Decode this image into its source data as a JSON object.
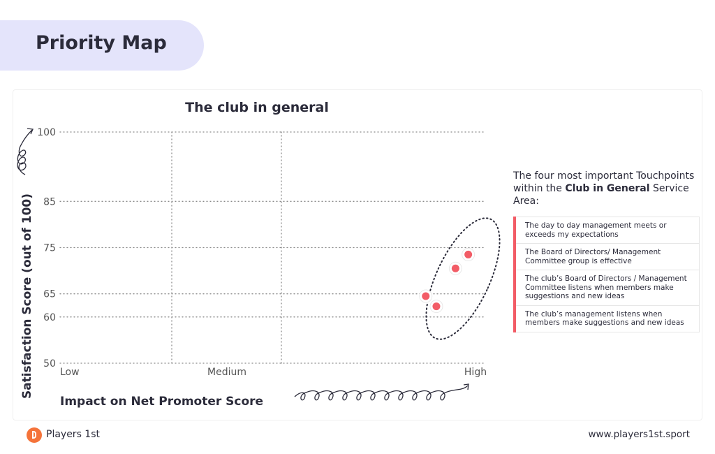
{
  "header": {
    "title": "Priority Map"
  },
  "chart_data": {
    "type": "scatter",
    "title": "The club in general",
    "xlabel": "Impact on Net Promoter Score",
    "ylabel": "Satisfaction Score (out of 100)",
    "x_tick_labels": [
      "Low",
      "Medium",
      "High"
    ],
    "x_range": [
      0,
      1
    ],
    "y_ticks": [
      100,
      85,
      75,
      65,
      60,
      50
    ],
    "ylim": [
      50,
      100
    ],
    "points": [
      {
        "x": 0.96,
        "y": 73.5
      },
      {
        "x": 0.93,
        "y": 70.5
      },
      {
        "x": 0.86,
        "y": 64.5
      },
      {
        "x": 0.885,
        "y": 62.3
      }
    ],
    "point_color": "#f25c66",
    "grid": true
  },
  "side_panel": {
    "intro_1": "The four most important Touchpoints within the ",
    "intro_bold_1": "Club in General",
    "intro_2": " Service Area:",
    "items": [
      "The day to day management meets or exceeds my expectations",
      "The Board of Directors/ Management Committee group is effective",
      "The club’s Board of Directors / Management Committee listens when members make suggestions and new ideas",
      "The club’s management listens when members make suggestions and new ideas"
    ],
    "accent_color": "#f25c66"
  },
  "footer": {
    "brand": "Players 1st",
    "url": "www.players1st.sport"
  }
}
